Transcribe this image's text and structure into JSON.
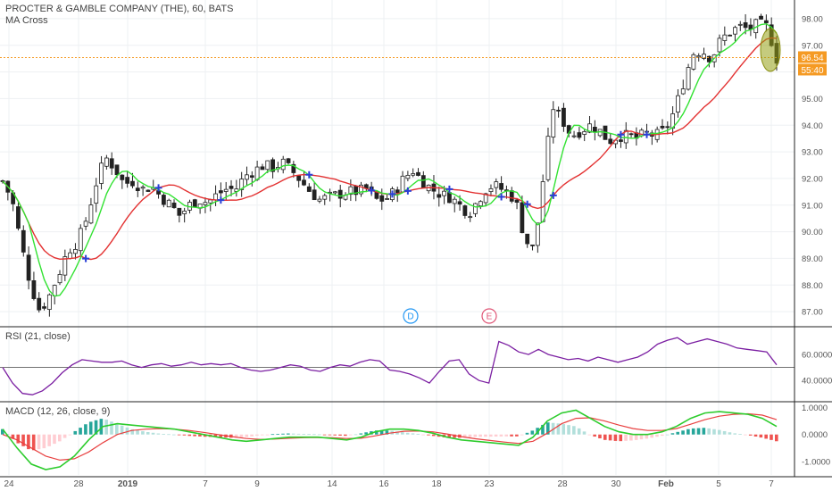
{
  "header": {
    "symbol_line": "PROCTER & GAMBLE COMPANY (THE), 60, BATS",
    "study": "MA Cross"
  },
  "price_tag": {
    "value": "96.54",
    "countdown": "55:40",
    "color": "#f59a23"
  },
  "events": [
    {
      "label": "D",
      "color": "#2196f3"
    },
    {
      "label": "E",
      "color": "#e05576"
    }
  ],
  "x_axis_ticks": [
    "24",
    "28",
    "2019",
    "7",
    "9",
    "14",
    "16",
    "18",
    "23",
    "28",
    "30",
    "Feb",
    "5",
    "7"
  ],
  "colors": {
    "fast_ma": "#33e233",
    "slow_ma": "#e33232",
    "rsi": "#7b1fa2",
    "macd": "#2dcc2d",
    "signal": "#e84040",
    "hist_up": "#26a69a",
    "hist_down": "#ef5350",
    "cross": "#2a3fd6"
  },
  "chart_data": [
    {
      "type": "candlestick",
      "title": "PROCTER & GAMBLE COMPANY (THE), 60, BATS",
      "series": [
        {
          "name": "MA Cross"
        }
      ],
      "ylim": [
        86.5,
        98.5
      ],
      "y_ticks": [
        "87.00",
        "88.00",
        "89.00",
        "90.00",
        "91.00",
        "92.00",
        "93.00",
        "94.00",
        "95.00",
        "96.00",
        "97.00",
        "98.00"
      ],
      "close_path": [
        91.9,
        91.2,
        89.5,
        88.0,
        87.0,
        87.6,
        88.4,
        89.3,
        89.6,
        90.5,
        91.8,
        92.8,
        92.4,
        91.8,
        91.9,
        91.6,
        91.7,
        91.3,
        91.0,
        90.6,
        91.0,
        91.2,
        91.1,
        91.4,
        91.6,
        91.6,
        92.1,
        92.3,
        92.5,
        92.4,
        92.6,
        92.3,
        91.9,
        91.5,
        91.2,
        91.3,
        91.4,
        91.5,
        91.5,
        91.6,
        91.2,
        91.2,
        91.5,
        92.0,
        92.3,
        91.9,
        91.6,
        91.4,
        91.3,
        91.0,
        90.7,
        91.2,
        91.7,
        91.7,
        91.5,
        91.2,
        89.7,
        89.3,
        92.1,
        94.7,
        94.2,
        93.6,
        93.8,
        94.0,
        93.8,
        93.4,
        93.6,
        93.6,
        93.5,
        93.7,
        93.6,
        93.8,
        94.5,
        95.6,
        96.7,
        96.8,
        96.5,
        97.2,
        97.5,
        97.7,
        97.6,
        97.8,
        97.7,
        96.5
      ]
    },
    {
      "type": "line",
      "title": "RSI (21, close)",
      "ylim": [
        25,
        80
      ],
      "y_ticks": [
        "40.0000",
        "60.0000"
      ],
      "values": [
        50,
        38,
        30,
        29,
        32,
        38,
        46,
        52,
        56,
        55,
        54,
        54,
        55,
        52,
        50,
        52,
        53,
        51,
        52,
        54,
        52,
        53,
        52,
        53,
        50,
        48,
        47,
        48,
        50,
        52,
        51,
        48,
        47,
        50,
        52,
        51,
        54,
        56,
        55,
        48,
        47,
        45,
        42,
        38,
        47,
        55,
        56,
        45,
        40,
        38,
        70,
        67,
        62,
        60,
        64,
        60,
        58,
        56,
        57,
        55,
        58,
        56,
        54,
        56,
        58,
        62,
        68,
        71,
        73,
        68,
        70,
        72,
        70,
        68,
        65,
        64,
        63,
        62,
        52
      ]
    },
    {
      "type": "line",
      "title": "MACD (12, 26, close, 9)",
      "ylim": [
        -1.5,
        1.15
      ],
      "y_ticks": [
        "1.0000",
        "0.0000",
        "-1.0000"
      ],
      "series": [
        {
          "values": [
            0.2,
            -0.5,
            -1.1,
            -1.3,
            -1.2,
            -0.8,
            -0.2,
            0.3,
            0.4,
            0.35,
            0.3,
            0.25,
            0.2,
            0.1,
            0.0,
            -0.1,
            -0.2,
            -0.25,
            -0.2,
            -0.15,
            -0.1,
            -0.1,
            -0.1,
            -0.15,
            -0.2,
            -0.1,
            0.1,
            0.2,
            0.2,
            0.15,
            0.05,
            -0.1,
            -0.2,
            -0.25,
            -0.3,
            -0.35,
            -0.4,
            -0.1,
            0.5,
            0.8,
            0.9,
            0.6,
            0.3,
            0.1,
            0.0,
            0.0,
            0.1,
            0.3,
            0.6,
            0.8,
            0.85,
            0.8,
            0.75,
            0.6,
            0.3
          ]
        },
        {
          "values": [
            0.0,
            -0.2,
            -0.5,
            -0.8,
            -0.95,
            -0.9,
            -0.65,
            -0.3,
            0.0,
            0.15,
            0.2,
            0.22,
            0.2,
            0.15,
            0.08,
            0.0,
            -0.08,
            -0.15,
            -0.18,
            -0.17,
            -0.14,
            -0.12,
            -0.11,
            -0.12,
            -0.15,
            -0.14,
            -0.05,
            0.05,
            0.12,
            0.13,
            0.1,
            0.02,
            -0.08,
            -0.16,
            -0.22,
            -0.28,
            -0.33,
            -0.25,
            0.05,
            0.4,
            0.6,
            0.62,
            0.5,
            0.35,
            0.22,
            0.15,
            0.15,
            0.22,
            0.38,
            0.55,
            0.68,
            0.75,
            0.77,
            0.72,
            0.55
          ]
        }
      ]
    }
  ]
}
